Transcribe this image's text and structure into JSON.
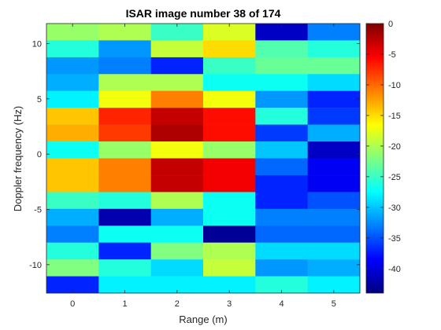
{
  "chart_data": {
    "type": "heatmap",
    "title": "ISAR image number 38 of 174",
    "xlabel": "Range (m)",
    "ylabel": "Doppler frequency (Hz)",
    "x": [
      0,
      1,
      2,
      3,
      4,
      5
    ],
    "y": [
      11.05,
      9.53,
      8.0,
      6.48,
      4.96,
      3.43,
      1.91,
      0.38,
      -1.14,
      -2.67,
      -4.19,
      -5.71,
      -7.24,
      -8.76,
      -10.29,
      -11.81
    ],
    "xlim": [
      -0.5,
      5.5
    ],
    "ylim": [
      -12.57,
      11.81
    ],
    "xticks": [
      "0",
      "1",
      "2",
      "3",
      "4",
      "5"
    ],
    "yticks": [
      "10",
      "5",
      "0",
      "-5",
      "-10"
    ],
    "ytick_values": [
      10,
      5,
      0,
      -5,
      -10
    ],
    "z": [
      [
        -21,
        -20,
        -25,
        -18,
        -41,
        -33
      ],
      [
        -26,
        -32,
        -19,
        -15,
        -24,
        -26
      ],
      [
        -32,
        -33,
        -37,
        -25,
        -23,
        -23
      ],
      [
        -31,
        -20,
        -20,
        -27,
        -27,
        -29
      ],
      [
        -28,
        -17,
        -11,
        -17,
        -32,
        -37
      ],
      [
        -14,
        -7,
        -3,
        -6,
        -26,
        -36
      ],
      [
        -13,
        -8,
        -2,
        -6,
        -36,
        -31
      ],
      [
        -27,
        -21,
        -17,
        -21,
        -30,
        -41
      ],
      [
        -14,
        -11,
        -3,
        -5,
        -34,
        -39
      ],
      [
        -14,
        -11,
        -3,
        -5,
        -37,
        -39
      ],
      [
        -25,
        -26,
        -20,
        -27,
        -37,
        -35
      ],
      [
        -31,
        -42,
        -31,
        -27,
        -33,
        -33
      ],
      [
        -33,
        -27,
        -27,
        -43,
        -34,
        -34
      ],
      [
        -26,
        -37,
        -22,
        -20,
        -29,
        -29
      ],
      [
        -22,
        -26,
        -29,
        -19,
        -32,
        -31
      ],
      [
        -37,
        -28,
        -28,
        -28,
        -26,
        -28
      ]
    ],
    "colormap": "jet",
    "clim": [
      -44,
      0
    ],
    "colorbar_ticks": [
      "0",
      "-5",
      "-10",
      "-15",
      "-20",
      "-25",
      "-30",
      "-35",
      "-40"
    ],
    "colorbar_tick_values": [
      0,
      -5,
      -10,
      -15,
      -20,
      -25,
      -30,
      -35,
      -40
    ],
    "grid": false
  }
}
